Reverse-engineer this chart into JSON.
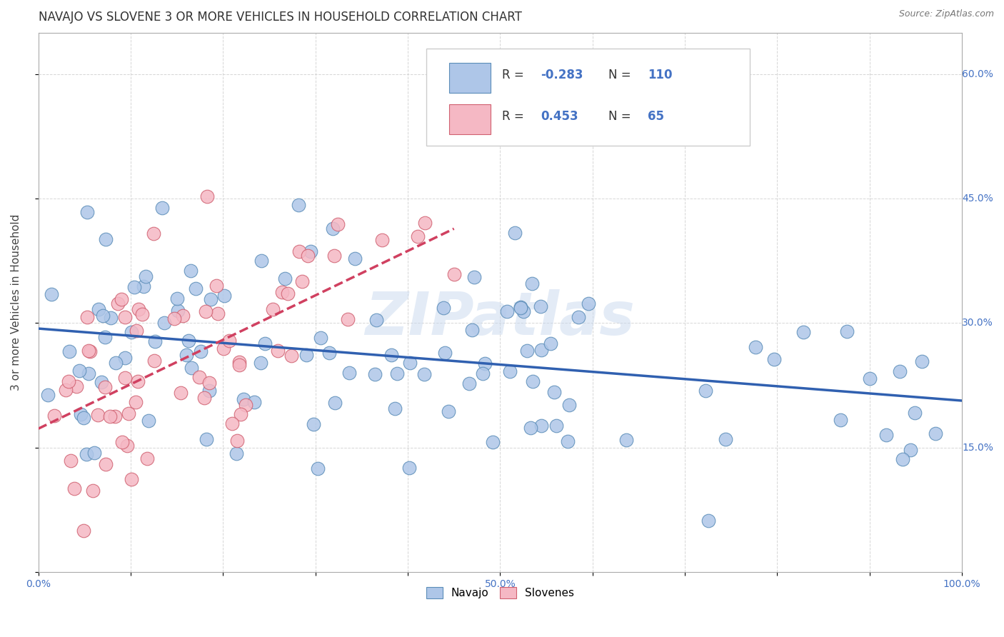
{
  "title": "NAVAJO VS SLOVENE 3 OR MORE VEHICLES IN HOUSEHOLD CORRELATION CHART",
  "source_text": "Source: ZipAtlas.com",
  "ylabel": "3 or more Vehicles in Household",
  "watermark": "ZIPatlas",
  "xlim": [
    0.0,
    1.0
  ],
  "ylim": [
    0.0,
    0.65
  ],
  "xticks": [
    0.0,
    0.1,
    0.2,
    0.3,
    0.4,
    0.5,
    0.6,
    0.7,
    0.8,
    0.9,
    1.0
  ],
  "yticks": [
    0.0,
    0.15,
    0.3,
    0.45,
    0.6
  ],
  "navajo_R": -0.283,
  "navajo_N": 110,
  "slovene_R": 0.453,
  "slovene_N": 65,
  "navajo_color": "#aec6e8",
  "navajo_edge_color": "#5b8db8",
  "slovene_color": "#f5b8c4",
  "slovene_edge_color": "#d06070",
  "trend_navajo_color": "#3060b0",
  "trend_slovene_color": "#d04060",
  "grid_color": "#cccccc",
  "background_color": "#ffffff",
  "title_fontsize": 12,
  "axis_label_fontsize": 11,
  "tick_fontsize": 10,
  "legend_fontsize": 12
}
